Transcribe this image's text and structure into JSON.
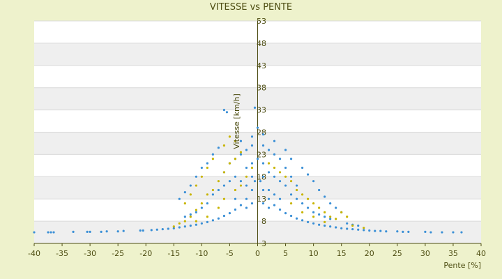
{
  "chart_data": {
    "type": "scatter",
    "title": "VITESSE vs PENTE",
    "xlabel": "Pente [%]",
    "ylabel": "Vitesse [km/h]",
    "xlim": [
      -40,
      40
    ],
    "ylim": [
      3,
      53
    ],
    "x_ticks": [
      -40,
      -35,
      -30,
      -25,
      -20,
      -15,
      -10,
      -5,
      0,
      5,
      10,
      15,
      20,
      25,
      30,
      35,
      40
    ],
    "y_ticks": [
      3,
      8,
      13,
      18,
      23,
      28,
      33,
      38,
      43,
      48,
      53
    ],
    "grid": "horizontal bands",
    "series": [
      {
        "color": "#3a8fd6",
        "points": [
          [
            -40,
            5.5
          ],
          [
            -37.5,
            5.5
          ],
          [
            -37,
            5.5
          ],
          [
            -36.5,
            5.5
          ],
          [
            -33,
            5.6
          ],
          [
            -30.5,
            5.6
          ],
          [
            -30,
            5.6
          ],
          [
            -28,
            5.6
          ],
          [
            -27,
            5.7
          ],
          [
            -25,
            5.7
          ],
          [
            -24,
            5.8
          ],
          [
            -21,
            5.9
          ],
          [
            -20.5,
            5.9
          ],
          [
            -19,
            6
          ],
          [
            -18,
            6.1
          ],
          [
            -17,
            6.2
          ],
          [
            -16,
            6.3
          ],
          [
            -15,
            6.4
          ],
          [
            -14,
            6.6
          ],
          [
            -13,
            6.8
          ],
          [
            -12,
            7
          ],
          [
            -11,
            7.2
          ],
          [
            -10,
            7.5
          ],
          [
            -9,
            7.8
          ],
          [
            -8,
            8.2
          ],
          [
            -7,
            8.6
          ],
          [
            -6,
            9.2
          ],
          [
            -5,
            9.8
          ],
          [
            -4,
            10.6
          ],
          [
            -3,
            11.6
          ],
          [
            -2,
            13
          ],
          [
            -1,
            15
          ],
          [
            -0.5,
            17
          ],
          [
            0.5,
            17
          ],
          [
            1,
            15
          ],
          [
            2,
            13
          ],
          [
            3,
            11.6
          ],
          [
            4,
            10.6
          ],
          [
            5,
            9.8
          ],
          [
            6,
            9.2
          ],
          [
            7,
            8.6
          ],
          [
            8,
            8.2
          ],
          [
            9,
            7.8
          ],
          [
            10,
            7.5
          ],
          [
            11,
            7.2
          ],
          [
            12,
            7
          ],
          [
            13,
            6.8
          ],
          [
            14,
            6.6
          ],
          [
            15,
            6.4
          ],
          [
            16,
            6.3
          ],
          [
            17,
            6.2
          ],
          [
            18,
            6.1
          ],
          [
            19,
            6
          ],
          [
            20,
            5.9
          ],
          [
            21,
            5.8
          ],
          [
            22,
            5.8
          ],
          [
            23,
            5.7
          ],
          [
            25,
            5.7
          ],
          [
            26,
            5.6
          ],
          [
            27,
            5.6
          ],
          [
            30,
            5.6
          ],
          [
            31,
            5.5
          ],
          [
            33,
            5.5
          ],
          [
            35,
            5.5
          ],
          [
            36.5,
            5.5
          ],
          [
            -6,
            33
          ],
          [
            -5.5,
            32.5
          ],
          [
            -0.5,
            33.5
          ],
          [
            0,
            29
          ],
          [
            -1,
            27
          ],
          [
            1,
            27.5
          ],
          [
            -8,
            23
          ],
          [
            -7,
            24.5
          ],
          [
            -3,
            26
          ],
          [
            3,
            26
          ],
          [
            5,
            24
          ],
          [
            6,
            22
          ],
          [
            -9,
            21
          ],
          [
            -10,
            20
          ],
          [
            -11,
            18
          ],
          [
            -12,
            16
          ],
          [
            -13,
            14.5
          ],
          [
            -14,
            13
          ],
          [
            8,
            20
          ],
          [
            9,
            18.5
          ],
          [
            10,
            17
          ],
          [
            11,
            15
          ],
          [
            12,
            13.5
          ],
          [
            13,
            12
          ],
          [
            14,
            11
          ],
          [
            15,
            10
          ],
          [
            -6,
            19
          ],
          [
            -5,
            21
          ],
          [
            -4,
            22
          ],
          [
            -3,
            23
          ],
          [
            -2,
            24
          ],
          [
            -1,
            25
          ],
          [
            1,
            25
          ],
          [
            2,
            24
          ],
          [
            3,
            23
          ],
          [
            4,
            22
          ],
          [
            5,
            20
          ],
          [
            6,
            18
          ],
          [
            7,
            16
          ],
          [
            -8,
            14
          ],
          [
            -7,
            15
          ],
          [
            -6,
            16
          ],
          [
            -5,
            17
          ],
          [
            -4,
            18
          ],
          [
            4,
            17
          ],
          [
            5,
            16
          ],
          [
            6,
            14
          ],
          [
            7,
            13
          ],
          [
            8,
            12
          ],
          [
            9,
            11
          ],
          [
            10,
            10
          ],
          [
            11,
            9.5
          ],
          [
            -10,
            11
          ],
          [
            -9,
            12
          ],
          [
            -11,
            10
          ],
          [
            -12,
            9.5
          ],
          [
            -13,
            9
          ],
          [
            12,
            9
          ],
          [
            13,
            8.5
          ],
          [
            16,
            7.5
          ],
          [
            17,
            7.2
          ],
          [
            18,
            7
          ],
          [
            -2,
            20
          ],
          [
            -1,
            21
          ],
          [
            0,
            22
          ],
          [
            1,
            21
          ],
          [
            2,
            19
          ],
          [
            3,
            18
          ],
          [
            -3,
            17
          ],
          [
            -2,
            16
          ],
          [
            2,
            15
          ],
          [
            3,
            14
          ],
          [
            -1,
            18
          ],
          [
            1,
            18
          ],
          [
            -4,
            13
          ],
          [
            4,
            13
          ],
          [
            -2,
            11
          ],
          [
            2,
            11
          ],
          [
            -1,
            12
          ],
          [
            1,
            12
          ]
        ]
      },
      {
        "color": "#c8b400",
        "points": [
          [
            -15,
            6.8
          ],
          [
            -14,
            7.5
          ],
          [
            -13,
            8
          ],
          [
            -12,
            9
          ],
          [
            -11,
            10.5
          ],
          [
            -10,
            12
          ],
          [
            -9,
            14
          ],
          [
            -8,
            15
          ],
          [
            -7,
            17
          ],
          [
            -6,
            19
          ],
          [
            -5,
            21
          ],
          [
            -4,
            22
          ],
          [
            -3,
            23.5
          ],
          [
            -6,
            25
          ],
          [
            -5,
            27
          ],
          [
            -4,
            26
          ],
          [
            -8,
            22
          ],
          [
            -9,
            20
          ],
          [
            -10,
            18
          ],
          [
            -11,
            16
          ],
          [
            -12,
            14
          ],
          [
            -13,
            12
          ],
          [
            4,
            19
          ],
          [
            5,
            18
          ],
          [
            6,
            17
          ],
          [
            7,
            15
          ],
          [
            8,
            14
          ],
          [
            9,
            13
          ],
          [
            10,
            12
          ],
          [
            11,
            11
          ],
          [
            12,
            10
          ],
          [
            13,
            9
          ],
          [
            14,
            8.5
          ],
          [
            15,
            10
          ],
          [
            16,
            9
          ],
          [
            17,
            7
          ],
          [
            19,
            6.5
          ],
          [
            -2,
            18
          ],
          [
            -3,
            16
          ],
          [
            -1,
            20
          ],
          [
            2,
            21
          ],
          [
            3,
            20
          ],
          [
            6,
            12
          ],
          [
            8,
            10
          ],
          [
            10,
            9
          ],
          [
            12,
            7.8
          ],
          [
            -7,
            11
          ],
          [
            -9,
            9
          ],
          [
            -11,
            8
          ],
          [
            -6,
            13
          ],
          [
            -4,
            15
          ]
        ]
      }
    ]
  }
}
